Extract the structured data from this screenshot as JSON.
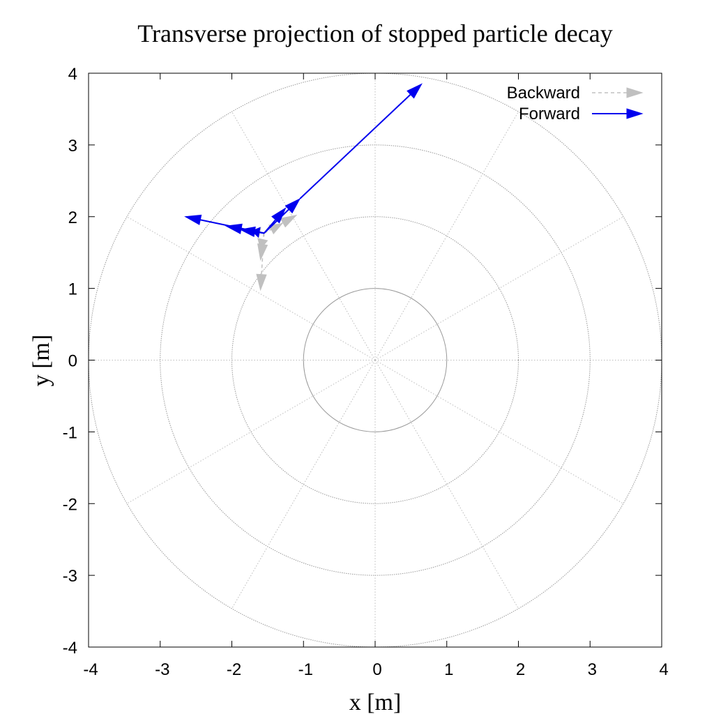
{
  "chart_data": {
    "type": "line",
    "title": "Transverse projection of stopped particle decay",
    "xlabel": "x [m]",
    "ylabel": "y [m]",
    "xlim": [
      -4,
      4
    ],
    "ylim": [
      -4,
      4
    ],
    "xticks": [
      "-4",
      "-3",
      "-2",
      "-1",
      "0",
      "1",
      "2",
      "3",
      "4"
    ],
    "yticks": [
      "-4",
      "-3",
      "-2",
      "-1",
      "0",
      "1",
      "2",
      "3",
      "4"
    ],
    "polar_grid": {
      "radii": [
        1,
        2,
        3,
        4
      ],
      "spoke_angles_deg": [
        0,
        30,
        60,
        90,
        120,
        150,
        180,
        210,
        240,
        270,
        300,
        330
      ]
    },
    "legend_position": "top-right",
    "series": [
      {
        "name": "Backward",
        "color": "#c0c0c0",
        "style": "dashed-arrow",
        "arrows": [
          {
            "x1": -1.55,
            "y1": 1.77,
            "x2": -1.1,
            "y2": 2.02
          },
          {
            "x1": -1.55,
            "y1": 1.77,
            "x2": -1.6,
            "y2": 0.98
          },
          {
            "x1": -1.55,
            "y1": 1.77,
            "x2": -1.6,
            "y2": 1.4
          },
          {
            "x1": -1.55,
            "y1": 1.77,
            "x2": -1.3,
            "y2": 1.9
          },
          {
            "x1": -1.55,
            "y1": 1.77,
            "x2": -1.6,
            "y2": 1.55
          },
          {
            "x1": -1.55,
            "y1": 1.77,
            "x2": -1.7,
            "y2": 1.8
          }
        ]
      },
      {
        "name": "Forward",
        "color": "#0000ee",
        "style": "solid-arrow",
        "arrows": [
          {
            "x1": -1.05,
            "y1": 2.25,
            "x2": 0.65,
            "y2": 3.85
          },
          {
            "x1": -1.55,
            "y1": 1.77,
            "x2": -2.65,
            "y2": 2.0
          },
          {
            "x1": -1.55,
            "y1": 1.77,
            "x2": -1.05,
            "y2": 2.25
          },
          {
            "x1": -1.55,
            "y1": 1.77,
            "x2": -2.08,
            "y2": 1.87
          },
          {
            "x1": -1.55,
            "y1": 1.77,
            "x2": -1.88,
            "y2": 1.82
          },
          {
            "x1": -1.55,
            "y1": 1.77,
            "x2": -1.25,
            "y2": 2.12
          },
          {
            "x1": -1.55,
            "y1": 1.77,
            "x2": -1.72,
            "y2": 1.8
          }
        ]
      }
    ]
  }
}
